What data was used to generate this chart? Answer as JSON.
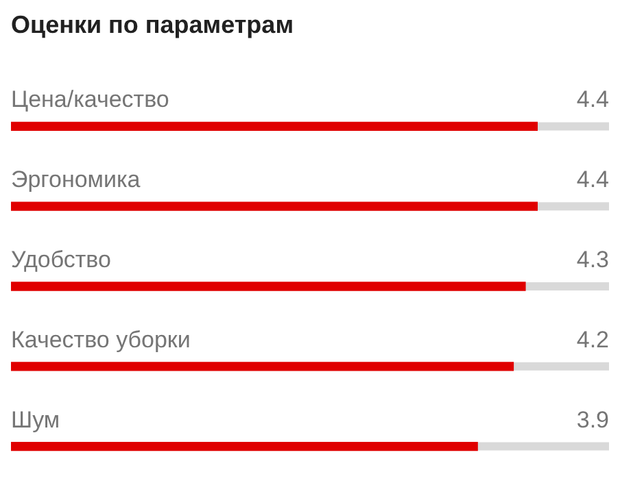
{
  "chart_data": {
    "type": "bar",
    "orientation": "horizontal",
    "title": "Оценки по параметрам",
    "categories": [
      "Цена/качество",
      "Эргономика",
      "Удобство",
      "Качество уборки",
      "Шум"
    ],
    "values": [
      4.4,
      4.4,
      4.3,
      4.2,
      3.9
    ],
    "color": "#e00000",
    "xlim": [
      0,
      5
    ],
    "tick_labels": false,
    "data_labels": true
  }
}
